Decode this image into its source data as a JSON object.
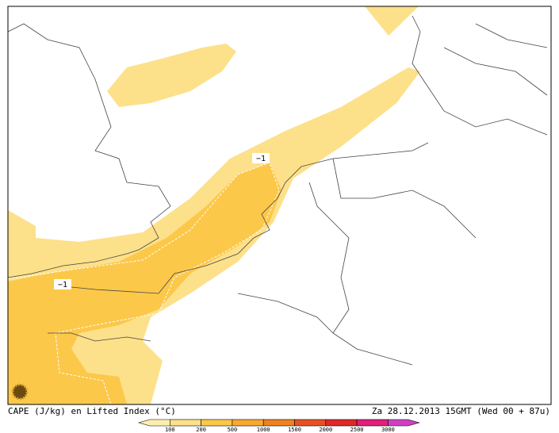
{
  "map": {
    "footer_left": "CAPE (J/kg) en Lifted Index (°C)",
    "footer_right": "Za 28.12.2013 15GMT (Wed 00 + 87u)",
    "contour_labels": [
      "−1",
      "−1"
    ],
    "legend_labels": [
      "100",
      "200",
      "500",
      "1000",
      "1500",
      "2000",
      "2500",
      "3000"
    ]
  }
}
